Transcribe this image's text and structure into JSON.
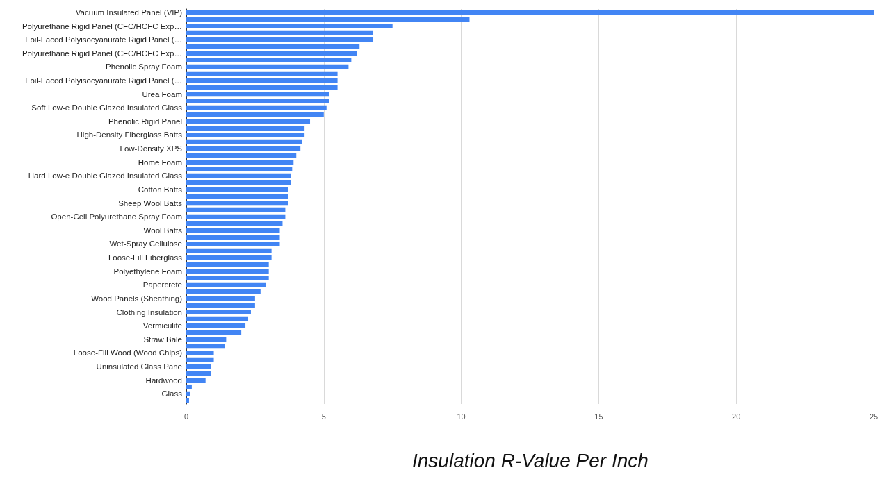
{
  "chart_data": {
    "type": "bar",
    "orientation": "horizontal",
    "title": "Insulation R-Value Per Inch",
    "categories": [
      "Vacuum Insulated Panel (VIP)",
      null,
      "Polyurethane Rigid Panel (CFC/HCFC Exp…",
      null,
      "Foil-Faced Polyisocyanurate Rigid Panel (…",
      null,
      "Polyurethane Rigid Panel (CFC/HCFC Exp…",
      null,
      "Phenolic Spray Foam",
      null,
      "Foil-Faced Polyisocyanurate Rigid Panel (…",
      null,
      "Urea Foam",
      null,
      "Soft Low-e Double Glazed Insulated Glass",
      null,
      "Phenolic Rigid Panel",
      null,
      "High-Density Fiberglass Batts",
      null,
      "Low-Density XPS",
      null,
      "Home Foam",
      null,
      "Hard Low-e Double Glazed Insulated Glass",
      null,
      "Cotton Batts",
      null,
      "Sheep Wool Batts",
      null,
      "Open-Cell Polyurethane Spray Foam",
      null,
      "Wool Batts",
      null,
      "Wet-Spray Cellulose",
      null,
      "Loose-Fill Fiberglass",
      null,
      "Polyethylene Foam",
      null,
      "Papercrete",
      null,
      "Wood Panels (Sheathing)",
      null,
      "Clothing Insulation",
      null,
      "Vermiculite",
      null,
      "Straw Bale",
      null,
      "Loose-Fill Wood (Wood Chips)",
      null,
      "Uninsulated Glass Pane",
      null,
      "Hardwood",
      null,
      "Glass",
      null
    ],
    "values": [
      25,
      10.3,
      7.5,
      6.8,
      6.8,
      6.3,
      6.2,
      6,
      5.9,
      5.5,
      5.5,
      5.5,
      5.2,
      5.2,
      5.1,
      5,
      4.5,
      4.3,
      4.3,
      4.2,
      4.15,
      4,
      3.9,
      3.85,
      3.8,
      3.8,
      3.7,
      3.7,
      3.7,
      3.6,
      3.6,
      3.5,
      3.4,
      3.4,
      3.4,
      3.1,
      3.1,
      3,
      3,
      3,
      2.9,
      2.7,
      2.5,
      2.5,
      2.35,
      2.25,
      2.15,
      2,
      1.45,
      1.4,
      1,
      1,
      0.9,
      0.9,
      0.7,
      0.2,
      0.15,
      0.1
    ],
    "color": "#4285f4",
    "xlim": [
      0,
      25
    ],
    "xticks": [
      0,
      5,
      10,
      15,
      20,
      25
    ],
    "grid": "x"
  }
}
